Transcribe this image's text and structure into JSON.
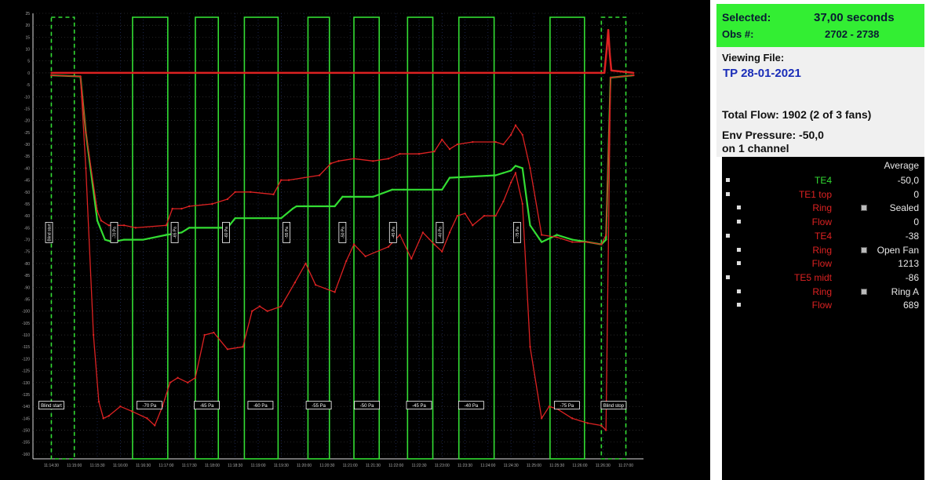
{
  "panel": {
    "selected_label": "Selected:",
    "selected_value": "37,00 seconds",
    "obs_label": "Obs #:",
    "obs_value": "2702 - 2738",
    "viewing_label": "Viewing File:",
    "file_name": "TP 28-01-2021",
    "total_flow": "Total Flow: 1902 (2 of 3 fans)",
    "env_pressure": "Env Pressure: -50,0",
    "env_channel": "on 1 channel",
    "average_header": "Average",
    "rows": [
      {
        "label": "TE4",
        "value": "-50,0",
        "color": "#33dd33",
        "indent": 0,
        "mini": false
      },
      {
        "label": "TE1 top",
        "value": "0",
        "color": "#dd2222",
        "indent": 0,
        "mini": false
      },
      {
        "label": "Ring",
        "value": "Sealed",
        "color": "#dd2222",
        "indent": 1,
        "mini": true
      },
      {
        "label": "Flow",
        "value": "0",
        "color": "#dd2222",
        "indent": 1,
        "mini": false
      },
      {
        "label": "TE4",
        "value": "-38",
        "color": "#dd2222",
        "indent": 0,
        "mini": false
      },
      {
        "label": "Ring",
        "value": "Open Fan",
        "color": "#dd2222",
        "indent": 1,
        "mini": true
      },
      {
        "label": "Flow",
        "value": "1213",
        "color": "#dd2222",
        "indent": 1,
        "mini": false
      },
      {
        "label": "TE5 midt",
        "value": "-86",
        "color": "#dd2222",
        "indent": 0,
        "mini": false
      },
      {
        "label": "Ring",
        "value": "Ring A",
        "color": "#dd2222",
        "indent": 1,
        "mini": true
      },
      {
        "label": "Flow",
        "value": "689",
        "color": "#dd2222",
        "indent": 1,
        "mini": false
      }
    ]
  },
  "chart_data": {
    "type": "line",
    "grid": true,
    "ylim": [
      -165,
      25
    ],
    "yticks": [
      "25",
      "20",
      "15",
      "10",
      "5",
      "0",
      "-5",
      "-10",
      "-15",
      "-20",
      "-25",
      "-30",
      "-35",
      "-40",
      "-45",
      "-50",
      "-55",
      "-60",
      "-65",
      "-70",
      "-75",
      "-80",
      "-85",
      "-90",
      "-95",
      "-100",
      "-105",
      "-110",
      "-115",
      "-120",
      "-125",
      "-130",
      "-135",
      "-140",
      "-145",
      "-150",
      "-155",
      "-160"
    ],
    "xlim": [
      0,
      760
    ],
    "xticks": [
      {
        "x": 0,
        "label": "11:14:30"
      },
      {
        "x": 30,
        "label": "11:15:00"
      },
      {
        "x": 60,
        "label": "11:15:30"
      },
      {
        "x": 90,
        "label": "11:16:00"
      },
      {
        "x": 120,
        "label": "11:16:30"
      },
      {
        "x": 150,
        "label": "11:17:00"
      },
      {
        "x": 180,
        "label": "11:17:30"
      },
      {
        "x": 210,
        "label": "11:18:00"
      },
      {
        "x": 240,
        "label": "11:18:30"
      },
      {
        "x": 270,
        "label": "11:19:00"
      },
      {
        "x": 300,
        "label": "11:19:30"
      },
      {
        "x": 330,
        "label": "11:20:00"
      },
      {
        "x": 360,
        "label": "11:20:30"
      },
      {
        "x": 390,
        "label": "11:21:00"
      },
      {
        "x": 420,
        "label": "11:21:30"
      },
      {
        "x": 450,
        "label": "11:22:00"
      },
      {
        "x": 480,
        "label": "11:22:30"
      },
      {
        "x": 510,
        "label": "11:23:00"
      },
      {
        "x": 540,
        "label": "11:23:30"
      },
      {
        "x": 570,
        "label": "11:24:00"
      },
      {
        "x": 600,
        "label": "11:24:30"
      },
      {
        "x": 630,
        "label": "11:25:00"
      },
      {
        "x": 660,
        "label": "11:25:30"
      },
      {
        "x": 690,
        "label": "11:26:00"
      },
      {
        "x": 720,
        "label": "11:26:30"
      },
      {
        "x": 750,
        "label": "11:27:00"
      },
      {
        "x": 780,
        "label": "11:27:30"
      }
    ],
    "regions": [
      {
        "x0": 0,
        "x1": 30,
        "style": "dashed"
      },
      {
        "x0": 106,
        "x1": 152,
        "style": "solid"
      },
      {
        "x0": 188,
        "x1": 218,
        "style": "solid"
      },
      {
        "x0": 252,
        "x1": 296,
        "style": "solid"
      },
      {
        "x0": 335,
        "x1": 363,
        "style": "solid"
      },
      {
        "x0": 395,
        "x1": 428,
        "style": "solid"
      },
      {
        "x0": 465,
        "x1": 498,
        "style": "solid"
      },
      {
        "x0": 532,
        "x1": 578,
        "style": "solid"
      },
      {
        "x0": 651,
        "x1": 696,
        "style": "solid"
      },
      {
        "x0": 718,
        "x1": 750,
        "style": "dashed"
      }
    ],
    "segment_labels": [
      {
        "x": 0,
        "y": -139.5,
        "label": "Blind start"
      },
      {
        "x": 128,
        "y": -139.5,
        "label": "-70 Pa"
      },
      {
        "x": 203,
        "y": -139.5,
        "label": "-65 Pa"
      },
      {
        "x": 273,
        "y": -139.5,
        "label": "-60 Pa"
      },
      {
        "x": 349,
        "y": -139.5,
        "label": "-55 Pa"
      },
      {
        "x": 412,
        "y": -139.5,
        "label": "-50 Pa"
      },
      {
        "x": 480,
        "y": -139.5,
        "label": "-45 Pa"
      },
      {
        "x": 548,
        "y": -139.5,
        "label": "-40 Pa"
      },
      {
        "x": 673,
        "y": -139.5,
        "label": "-75 Pa"
      },
      {
        "x": 734,
        "y": -139.5,
        "label": "Blind stop"
      }
    ],
    "vertical_labels": [
      {
        "x": -3,
        "label": "Blind start"
      },
      {
        "x": 82,
        "label": "-70 Pa"
      },
      {
        "x": 161,
        "label": "-65 Pa"
      },
      {
        "x": 228,
        "label": "-60 Pa"
      },
      {
        "x": 307,
        "label": "-55 Pa"
      },
      {
        "x": 380,
        "label": "-50 Pa"
      },
      {
        "x": 446,
        "label": "-45 Pa"
      },
      {
        "x": 507,
        "label": "-40 Pa"
      },
      {
        "x": 608,
        "label": "-75 Pa"
      }
    ],
    "series": [
      {
        "name": "TE4",
        "color": "#33dd33",
        "width": 2.2,
        "x": [
          0,
          38,
          45,
          60,
          70,
          80,
          95,
          120,
          150,
          170,
          180,
          230,
          240,
          300,
          315,
          320,
          370,
          380,
          420,
          445,
          460,
          510,
          520,
          580,
          590,
          600,
          606,
          615,
          625,
          640,
          660,
          680,
          700,
          718,
          724,
          730,
          760
        ],
        "y": [
          -1,
          -1.5,
          -25,
          -62,
          -70,
          -71,
          -70,
          -70,
          -68,
          -67,
          -65,
          -65,
          -61,
          -61,
          -57,
          -56,
          -56,
          -52,
          -52,
          -49,
          -49,
          -49,
          -44,
          -43,
          -42,
          -41,
          -39,
          -40,
          -64,
          -71,
          -68,
          -70,
          -71,
          -72,
          -70,
          -2,
          -1
        ]
      },
      {
        "name": "TE1 top",
        "color": "#dd2222",
        "width": 2.5,
        "x": [
          0,
          722,
          725,
          727,
          729,
          731,
          760
        ],
        "y": [
          0,
          0,
          10,
          18,
          8,
          1,
          0
        ]
      },
      {
        "name": "TE4 Open Fan",
        "color": "#dd2222",
        "width": 1.3,
        "x": [
          0,
          38,
          45,
          60,
          65,
          75,
          95,
          110,
          150,
          158,
          170,
          180,
          210,
          230,
          240,
          260,
          290,
          300,
          310,
          350,
          365,
          375,
          395,
          420,
          440,
          455,
          480,
          500,
          510,
          520,
          530,
          550,
          580,
          590,
          600,
          606,
          615,
          625,
          640,
          660,
          680,
          700,
          718,
          724,
          730,
          760
        ],
        "y": [
          -1,
          -1.5,
          -25,
          -58,
          -62,
          -64,
          -64,
          -65,
          -64,
          -57,
          -57,
          -56,
          -55,
          -53,
          -50,
          -50,
          -51,
          -45,
          -45,
          -43,
          -38,
          -37,
          -36,
          -37,
          -36,
          -34,
          -34,
          -33,
          -28,
          -32,
          -30,
          -29,
          -29,
          -30,
          -26,
          -22,
          -26,
          -40,
          -68,
          -69,
          -71,
          -71,
          -72,
          -68,
          -2,
          -1
        ]
      },
      {
        "name": "TE5 midt",
        "color": "#dd2222",
        "width": 1.3,
        "x": [
          0,
          38,
          45,
          55,
          62,
          68,
          75,
          90,
          105,
          125,
          135,
          145,
          155,
          165,
          178,
          188,
          200,
          212,
          230,
          250,
          262,
          272,
          282,
          300,
          318,
          332,
          345,
          370,
          385,
          395,
          410,
          440,
          455,
          470,
          485,
          500,
          510,
          520,
          530,
          540,
          550,
          565,
          580,
          590,
          600,
          606,
          615,
          625,
          640,
          650,
          660,
          680,
          700,
          718,
          724,
          730,
          760
        ],
        "y": [
          -1,
          -1.5,
          -40,
          -110,
          -138,
          -145,
          -144,
          -140,
          -142,
          -145,
          -148,
          -140,
          -130,
          -128,
          -130,
          -128,
          -110,
          -109,
          -116,
          -115,
          -100,
          -98,
          -100,
          -98,
          -88,
          -80,
          -89,
          -92,
          -79,
          -72,
          -77,
          -73,
          -68,
          -78,
          -67,
          -72,
          -75,
          -67,
          -60,
          -59,
          -64,
          -60,
          -60,
          -54,
          -46,
          -42,
          -55,
          -115,
          -145,
          -140,
          -141,
          -145,
          -147,
          -148,
          -150,
          -2,
          -1
        ]
      }
    ]
  }
}
